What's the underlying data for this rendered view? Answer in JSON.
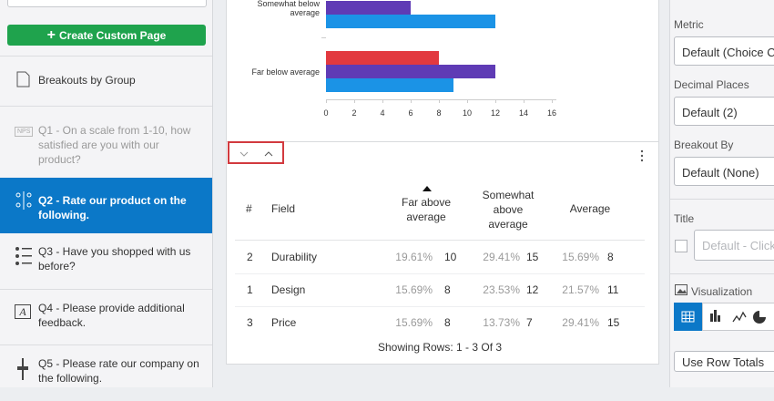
{
  "sidebar": {
    "create_button": "Create Custom Page",
    "items": [
      {
        "label": "Breakouts by Group"
      },
      {
        "icon_text": "NPS",
        "label": "Q1 - On a scale from 1-10, how satisfied are you with our product?"
      },
      {
        "label": "Q2 - Rate our product on the following."
      },
      {
        "label": "Q3 - Have you shopped with us before?"
      },
      {
        "label": "Q4 - Please provide additional feedback."
      },
      {
        "label": "Q5 - Please rate our company on the following."
      }
    ]
  },
  "chart_data": {
    "type": "bar",
    "orientation": "horizontal",
    "categories": [
      "Somewhat below average",
      "Far below average"
    ],
    "series": [
      {
        "color": "#e2393f",
        "values": [
          null,
          8
        ]
      },
      {
        "color": "#5f3bb5",
        "values": [
          6,
          12
        ]
      },
      {
        "color": "#1b93e6",
        "values": [
          12,
          9
        ]
      }
    ],
    "xlim": [
      0,
      16
    ],
    "xticks": [
      0,
      2,
      4,
      6,
      8,
      10,
      12,
      14,
      16
    ]
  },
  "table": {
    "headers": [
      "#",
      "Field",
      "Far above average",
      "Somewhat above average",
      "Average"
    ],
    "rows": [
      [
        "2",
        "Durability",
        "19.61%",
        "10",
        "29.41%",
        "15",
        "15.69%",
        "8"
      ],
      [
        "1",
        "Design",
        "15.69%",
        "8",
        "23.53%",
        "12",
        "21.57%",
        "11"
      ],
      [
        "3",
        "Price",
        "15.69%",
        "8",
        "13.73%",
        "7",
        "29.41%",
        "15"
      ]
    ],
    "footer": "Showing Rows: 1 - 3 Of 3"
  },
  "panel": {
    "metric_label": "Metric",
    "metric_value": "Default (Choice C",
    "decimal_label": "Decimal Places",
    "decimal_value": "Default (2)",
    "breakout_label": "Breakout By",
    "breakout_value": "Default (None)",
    "title_label": "Title",
    "title_placeholder": "Default - Click",
    "visualization_label": "Visualization",
    "totals_value": "Use Row Totals"
  }
}
